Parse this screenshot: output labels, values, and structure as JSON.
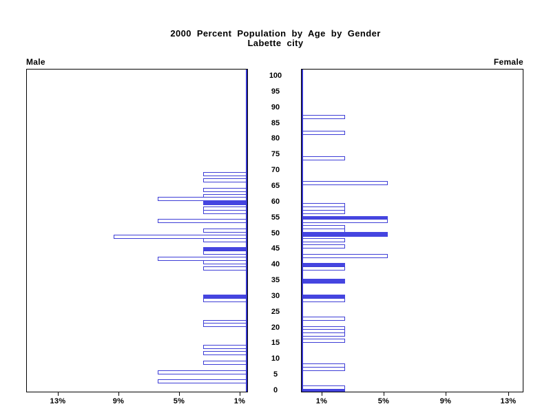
{
  "title": {
    "line1": "2000 Percent Population by Age by Gender",
    "line2": "Labette city"
  },
  "panels": {
    "male_label": "Male",
    "female_label": "Female"
  },
  "colors": {
    "bar_outline": "#3d3dd6",
    "bar_fill": "#4545e0",
    "center_axis": "#3333cc",
    "box_border": "#000000",
    "text": "#000000",
    "background": "#ffffff"
  },
  "chart_data": {
    "type": "bar",
    "subtype": "population_pyramid",
    "title": "2000 Percent Population by Age by Gender",
    "subtitle": "Labette city",
    "legend": "none",
    "grid": "off",
    "age_axis": {
      "min": 0,
      "max": 100,
      "tick_step": 5,
      "tick_labels": [
        "100",
        "95",
        "90",
        "85",
        "80",
        "75",
        "70",
        "65",
        "60",
        "55",
        "50",
        "45",
        "40",
        "35",
        "30",
        "25",
        "20",
        "15",
        "10",
        "5",
        "0"
      ]
    },
    "percent_axis": {
      "male_tick_values": [
        13,
        9,
        5,
        1
      ],
      "male_tick_labels": [
        "13%",
        "9%",
        "5%",
        "1%"
      ],
      "female_tick_values": [
        1,
        5,
        9,
        13
      ],
      "female_tick_labels": [
        "1%",
        "5%",
        "9%",
        "13%"
      ],
      "max_percent": 14.6
    },
    "series": [
      {
        "name": "Male",
        "side": "left",
        "bars": [
          {
            "age": 69,
            "percent": 2.9,
            "filled": false
          },
          {
            "age": 67,
            "percent": 2.9,
            "filled": false
          },
          {
            "age": 64,
            "percent": 2.9,
            "filled": false
          },
          {
            "age": 62,
            "percent": 2.9,
            "filled": false
          },
          {
            "age": 61,
            "percent": 5.9,
            "filled": false
          },
          {
            "age": 60,
            "percent": 2.9,
            "filled": true
          },
          {
            "age": 58,
            "percent": 2.9,
            "filled": false
          },
          {
            "age": 57,
            "percent": 2.9,
            "filled": false
          },
          {
            "age": 54,
            "percent": 5.9,
            "filled": false
          },
          {
            "age": 51,
            "percent": 2.9,
            "filled": false
          },
          {
            "age": 49,
            "percent": 8.8,
            "filled": false
          },
          {
            "age": 48,
            "percent": 2.9,
            "filled": false
          },
          {
            "age": 45,
            "percent": 2.9,
            "filled": true
          },
          {
            "age": 44,
            "percent": 2.9,
            "filled": false
          },
          {
            "age": 42,
            "percent": 5.9,
            "filled": false
          },
          {
            "age": 41,
            "percent": 2.9,
            "filled": false
          },
          {
            "age": 39,
            "percent": 2.9,
            "filled": false
          },
          {
            "age": 30,
            "percent": 2.9,
            "filled": true
          },
          {
            "age": 29,
            "percent": 2.9,
            "filled": false
          },
          {
            "age": 22,
            "percent": 2.9,
            "filled": false
          },
          {
            "age": 21,
            "percent": 2.9,
            "filled": false
          },
          {
            "age": 14,
            "percent": 2.9,
            "filled": false
          },
          {
            "age": 12,
            "percent": 2.9,
            "filled": false
          },
          {
            "age": 9,
            "percent": 2.9,
            "filled": false
          },
          {
            "age": 6,
            "percent": 5.9,
            "filled": false
          },
          {
            "age": 3,
            "percent": 5.9,
            "filled": false
          }
        ]
      },
      {
        "name": "Female",
        "side": "right",
        "bars": [
          {
            "age": 87,
            "percent": 2.8,
            "filled": false
          },
          {
            "age": 82,
            "percent": 2.8,
            "filled": false
          },
          {
            "age": 74,
            "percent": 2.8,
            "filled": false
          },
          {
            "age": 66,
            "percent": 5.6,
            "filled": false
          },
          {
            "age": 59,
            "percent": 2.8,
            "filled": false
          },
          {
            "age": 58,
            "percent": 2.8,
            "filled": false
          },
          {
            "age": 57,
            "percent": 2.8,
            "filled": false
          },
          {
            "age": 55,
            "percent": 5.6,
            "filled": true
          },
          {
            "age": 54,
            "percent": 5.6,
            "filled": false
          },
          {
            "age": 52,
            "percent": 2.8,
            "filled": false
          },
          {
            "age": 51,
            "percent": 2.8,
            "filled": false
          },
          {
            "age": 50,
            "percent": 5.6,
            "filled": true
          },
          {
            "age": 48,
            "percent": 2.8,
            "filled": false
          },
          {
            "age": 46,
            "percent": 2.8,
            "filled": false
          },
          {
            "age": 43,
            "percent": 5.6,
            "filled": false
          },
          {
            "age": 40,
            "percent": 2.8,
            "filled": true
          },
          {
            "age": 39,
            "percent": 2.8,
            "filled": false
          },
          {
            "age": 35,
            "percent": 2.8,
            "filled": true
          },
          {
            "age": 30,
            "percent": 2.8,
            "filled": true
          },
          {
            "age": 29,
            "percent": 2.8,
            "filled": false
          },
          {
            "age": 23,
            "percent": 2.8,
            "filled": false
          },
          {
            "age": 20,
            "percent": 2.8,
            "filled": false
          },
          {
            "age": 19,
            "percent": 2.8,
            "filled": false
          },
          {
            "age": 18,
            "percent": 2.8,
            "filled": false
          },
          {
            "age": 16,
            "percent": 2.8,
            "filled": false
          },
          {
            "age": 8,
            "percent": 2.8,
            "filled": false
          },
          {
            "age": 7,
            "percent": 2.8,
            "filled": false
          },
          {
            "age": 1,
            "percent": 2.8,
            "filled": false
          },
          {
            "age": 0,
            "percent": 2.8,
            "filled": true
          }
        ]
      }
    ]
  }
}
